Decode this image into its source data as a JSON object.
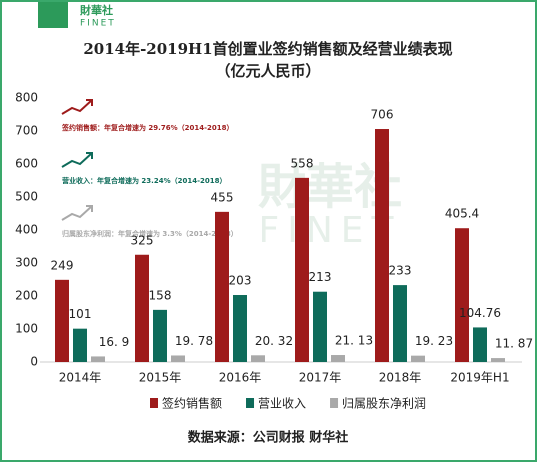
{
  "header": {
    "brand": "財華社",
    "brand_en": "FINET"
  },
  "chart_data": {
    "type": "bar",
    "title": "2014年-2019H1首创置业签约销售额及经营业绩表现",
    "subtitle": "（亿元人民币）",
    "categories": [
      "2014年",
      "2015年",
      "2016年",
      "2017年",
      "2018年",
      "2019年H1"
    ],
    "series": [
      {
        "name": "签约销售额",
        "color": "#9e1b1b",
        "values": [
          249,
          325,
          455,
          558,
          706,
          405.4
        ]
      },
      {
        "name": "营业收入",
        "color": "#0e6b5a",
        "values": [
          101,
          158,
          203,
          213,
          233,
          104.76
        ]
      },
      {
        "name": "归属股东净利润",
        "color": "#a9a9a9",
        "values": [
          16.9,
          19.78,
          20.32,
          21.13,
          19.23,
          11.87
        ],
        "value_labels": [
          "16. 9",
          "19. 78",
          "20. 32",
          "21. 13",
          "19. 23",
          "11. 87"
        ]
      }
    ],
    "ylim": [
      0,
      800
    ],
    "yticks": [
      0,
      100,
      200,
      300,
      400,
      500,
      600,
      700,
      800
    ],
    "grid": false,
    "annotations": [
      "签约销售额：年复合增速为 29.76%（2014-2018）",
      "营业收入：年复合增速为 23.24%（2014-2018）",
      "归属股东净利润：年复合增速为 3.3%（2014-2018）"
    ],
    "source": "数据来源：公司财报 财华社"
  }
}
